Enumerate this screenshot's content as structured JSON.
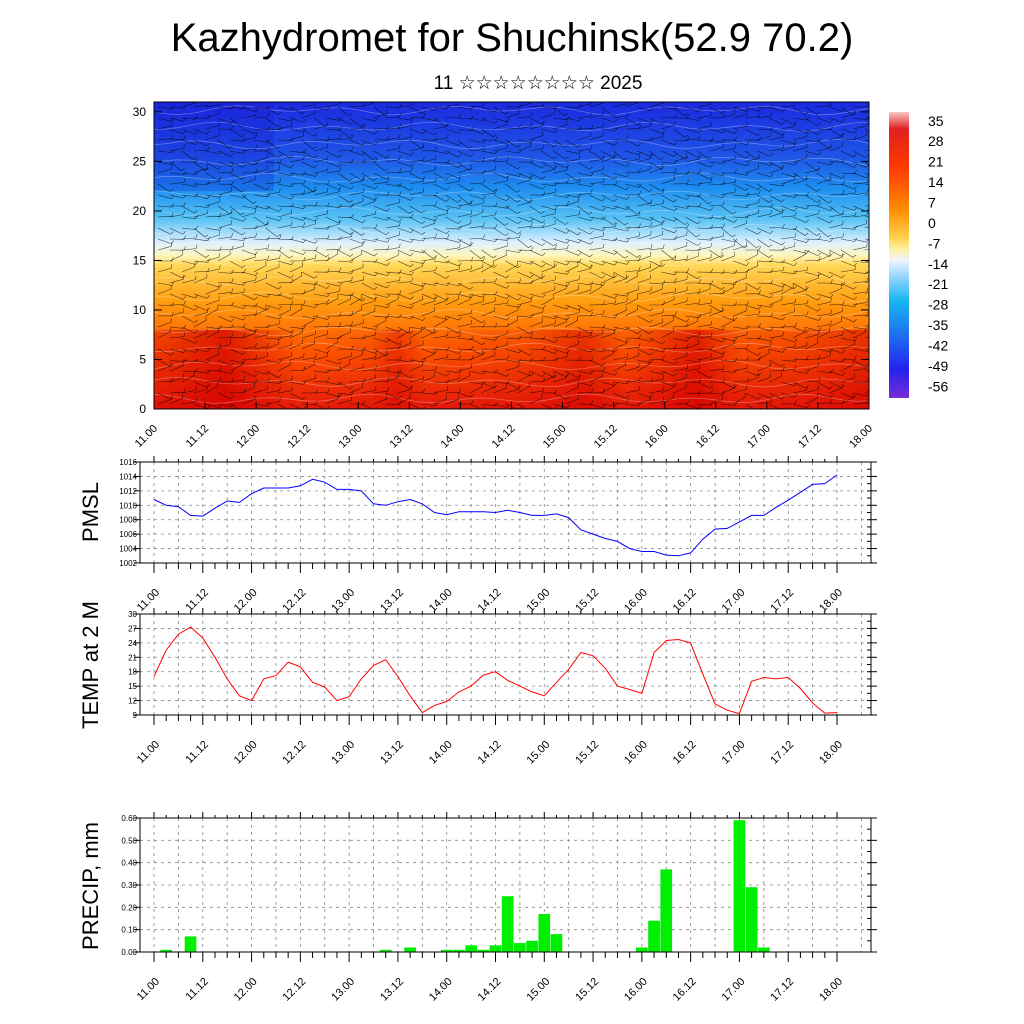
{
  "title": "Kazhydromet for Shuchinsk(52.9 70.2)",
  "subtitle": "11 ☆☆☆☆☆☆☆☆ 2025",
  "colors": {
    "pmsl_line": "#0000ff",
    "temp_line": "#ff0000",
    "precip_bar": "#00ee00",
    "precip_bar_edge": "#00aa00",
    "axis": "#000000",
    "grid": "#888888"
  },
  "chart_data": [
    {
      "type": "heatmap",
      "name": "cross-section",
      "x_tick_labels": [
        "11.00",
        "11.12",
        "12.00",
        "12.12",
        "13.00",
        "13.12",
        "14.00",
        "14.12",
        "15.00",
        "15.12",
        "16.00",
        "16.12",
        "17.00",
        "17.12",
        "18.00"
      ],
      "y_tick_labels": [
        "0",
        "5",
        "10",
        "15",
        "20",
        "25",
        "30"
      ],
      "ylim": [
        0,
        31
      ],
      "colorbar_labels": [
        "35",
        "28",
        "21",
        "14",
        "7",
        "0",
        "-7",
        "-14",
        "-21",
        "-28",
        "-35",
        "-42",
        "-49",
        "-56"
      ],
      "colorbar_range": [
        -60,
        38
      ],
      "overlay": "wind barbs"
    },
    {
      "type": "line",
      "name": "pmsl",
      "ylabel": "PMSL",
      "x_tick_labels": [
        "11.00",
        "11.12",
        "12.00",
        "12.12",
        "13.00",
        "13.12",
        "14.00",
        "14.12",
        "15.00",
        "15.12",
        "16.00",
        "16.12",
        "17.00",
        "17.12",
        "18.00"
      ],
      "y_tick_labels": [
        "1002",
        "1004",
        "1006",
        "1008",
        "1010",
        "1012",
        "1014",
        "1016"
      ],
      "ylim": [
        1002,
        1016
      ],
      "grid": true,
      "values": [
        1010.8,
        1010.0,
        1009.8,
        1008.6,
        1008.5,
        1009.6,
        1010.6,
        1010.4,
        1011.6,
        1012.4,
        1012.4,
        1012.4,
        1012.7,
        1013.6,
        1013.2,
        1012.2,
        1012.2,
        1012.0,
        1010.2,
        1010.0,
        1010.5,
        1010.8,
        1010.2,
        1009.0,
        1008.7,
        1009.1,
        1009.1,
        1009.1,
        1009.0,
        1009.3,
        1009.0,
        1008.6,
        1008.6,
        1008.8,
        1008.3,
        1006.6,
        1006.0,
        1005.4,
        1005.0,
        1004.0,
        1003.6,
        1003.6,
        1003.1,
        1003.0,
        1003.4,
        1005.3,
        1006.7,
        1006.8,
        1007.7,
        1008.6,
        1008.6,
        1009.7,
        1010.7,
        1011.8,
        1012.9,
        1013.0,
        1014.2
      ]
    },
    {
      "type": "line",
      "name": "temp2m",
      "ylabel": "TEMP at 2 M",
      "x_tick_labels": [
        "11.00",
        "11.12",
        "12.00",
        "12.12",
        "13.00",
        "13.12",
        "14.00",
        "14.12",
        "15.00",
        "15.12",
        "16.00",
        "16.12",
        "17.00",
        "17.12",
        "18.00"
      ],
      "y_tick_labels": [
        "9",
        "12",
        "15",
        "18",
        "21",
        "24",
        "27",
        "30"
      ],
      "ylim": [
        9,
        30
      ],
      "grid": true,
      "values": [
        17.0,
        22.5,
        25.8,
        27.3,
        25.0,
        21.0,
        16.5,
        13.0,
        12.0,
        16.5,
        17.2,
        20.0,
        19.0,
        15.8,
        14.8,
        12.0,
        12.8,
        16.5,
        19.3,
        20.5,
        17.0,
        13.0,
        9.5,
        11.0,
        11.8,
        13.8,
        15.0,
        17.3,
        18.0,
        16.2,
        15.0,
        13.8,
        13.0,
        15.8,
        18.5,
        22.0,
        21.3,
        18.7,
        15.0,
        14.3,
        13.5,
        22.0,
        24.5,
        24.7,
        24.0,
        17.5,
        11.3,
        10.0,
        9.3,
        16.0,
        16.8,
        16.5,
        16.8,
        14.5,
        11.5,
        9.4,
        9.5
      ]
    },
    {
      "type": "bar",
      "name": "precip",
      "ylabel": "PRECIP, mm",
      "x_tick_labels": [
        "11.00",
        "11.12",
        "12.00",
        "12.12",
        "13.00",
        "13.12",
        "14.00",
        "14.12",
        "15.00",
        "15.12",
        "16.00",
        "16.12",
        "17.00",
        "17.12",
        "18.00"
      ],
      "y_tick_labels": [
        "0.00",
        "0.10",
        "0.20",
        "0.30",
        "0.40",
        "0.50",
        "0.60"
      ],
      "ylim": [
        0,
        0.6
      ],
      "grid": true,
      "values": [
        0,
        0.01,
        0,
        0.07,
        0,
        0,
        0,
        0,
        0,
        0,
        0,
        0,
        0,
        0,
        0,
        0,
        0,
        0,
        0,
        0.01,
        0,
        0.02,
        0,
        0,
        0.01,
        0.01,
        0.03,
        0.01,
        0.03,
        0.25,
        0.04,
        0.05,
        0.17,
        0.08,
        0,
        0,
        0,
        0,
        0,
        0,
        0.02,
        0.14,
        0.37,
        0,
        0,
        0,
        0,
        0,
        0.59,
        0.29,
        0.02,
        0,
        0,
        0,
        0,
        0
      ]
    }
  ]
}
